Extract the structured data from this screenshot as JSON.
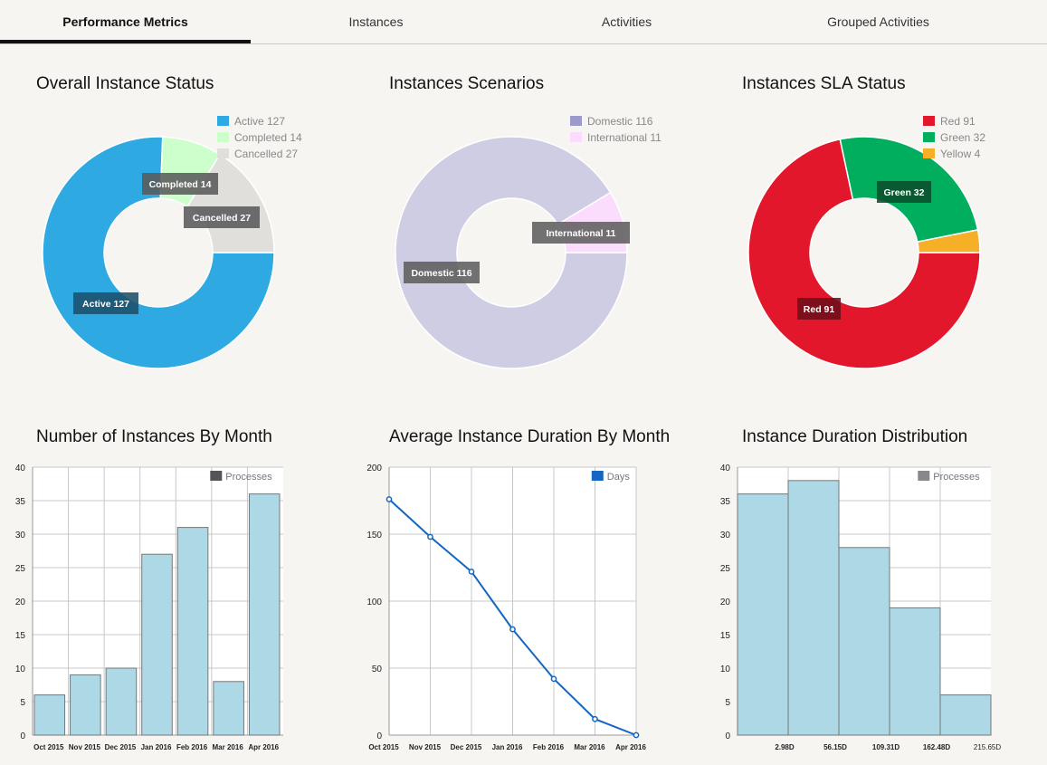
{
  "tabs": [
    {
      "label": "Performance Metrics",
      "active": true
    },
    {
      "label": "Instances",
      "active": false
    },
    {
      "label": "Activities",
      "active": false
    },
    {
      "label": "Grouped Activities",
      "active": false
    }
  ],
  "chart_data": [
    {
      "type": "pie",
      "title": "Overall Instance Status",
      "legend_position": "top-right",
      "slices": [
        {
          "name": "Active",
          "value": 127,
          "color": "#2ea9e1"
        },
        {
          "name": "Completed",
          "value": 14,
          "color": "#ccffcc"
        },
        {
          "name": "Cancelled",
          "value": 27,
          "color": "#e1dfdb"
        }
      ]
    },
    {
      "type": "pie",
      "title": "Instances Scenarios",
      "legend_position": "top-right",
      "slices": [
        {
          "name": "Domestic",
          "value": 116,
          "color": "#cfcde3"
        },
        {
          "name": "International",
          "value": 11,
          "color": "#fcdcfc"
        }
      ],
      "legend_colors": [
        "#9c9acb",
        "#fcdcfc"
      ]
    },
    {
      "type": "pie",
      "title": "Instances SLA Status",
      "legend_position": "top-right",
      "slices": [
        {
          "name": "Red",
          "value": 91,
          "color": "#e3172c"
        },
        {
          "name": "Green",
          "value": 32,
          "color": "#00ae5d"
        },
        {
          "name": "Yellow",
          "value": 4,
          "color": "#f6b027"
        }
      ]
    },
    {
      "type": "bar",
      "title": "Number of Instances By Month",
      "categories": [
        "Oct 2015",
        "Nov 2015",
        "Dec 2015",
        "Jan 2016",
        "Feb 2016",
        "Mar 2016",
        "Apr 2016"
      ],
      "series": [
        {
          "name": "Processes",
          "values": [
            6,
            9,
            10,
            27,
            31,
            8,
            36
          ],
          "color": "#add8e6",
          "legend_color": "#555555"
        }
      ],
      "ylim": [
        0,
        40
      ],
      "yticks": [
        0,
        5,
        10,
        15,
        20,
        25,
        30,
        35,
        40
      ],
      "grid": true,
      "legend_position": "top-right"
    },
    {
      "type": "line",
      "title": "Average Instance Duration By Month",
      "categories": [
        "Oct 2015",
        "Nov 2015",
        "Dec 2015",
        "Jan 2016",
        "Feb 2016",
        "Mar 2016",
        "Apr 2016"
      ],
      "series": [
        {
          "name": "Days",
          "values": [
            176,
            148,
            122,
            79,
            42,
            12,
            0
          ],
          "color": "#1566c0"
        }
      ],
      "ylim": [
        0,
        200
      ],
      "yticks": [
        0,
        50,
        100,
        150,
        200
      ],
      "grid": true,
      "legend_position": "top-right"
    },
    {
      "type": "bar",
      "title": "Instance Duration Distribution",
      "categories": [
        "2.98D",
        "56.15D",
        "109.31D",
        "162.48D",
        "215.65D"
      ],
      "series": [
        {
          "name": "Processes",
          "values": [
            36,
            38,
            28,
            19,
            6
          ],
          "color": "#add8e6",
          "legend_color": "#888888"
        }
      ],
      "ylim": [
        0,
        40
      ],
      "yticks": [
        0,
        5,
        10,
        15,
        20,
        25,
        30,
        35,
        40
      ],
      "grid": true,
      "legend_position": "top-right"
    }
  ]
}
